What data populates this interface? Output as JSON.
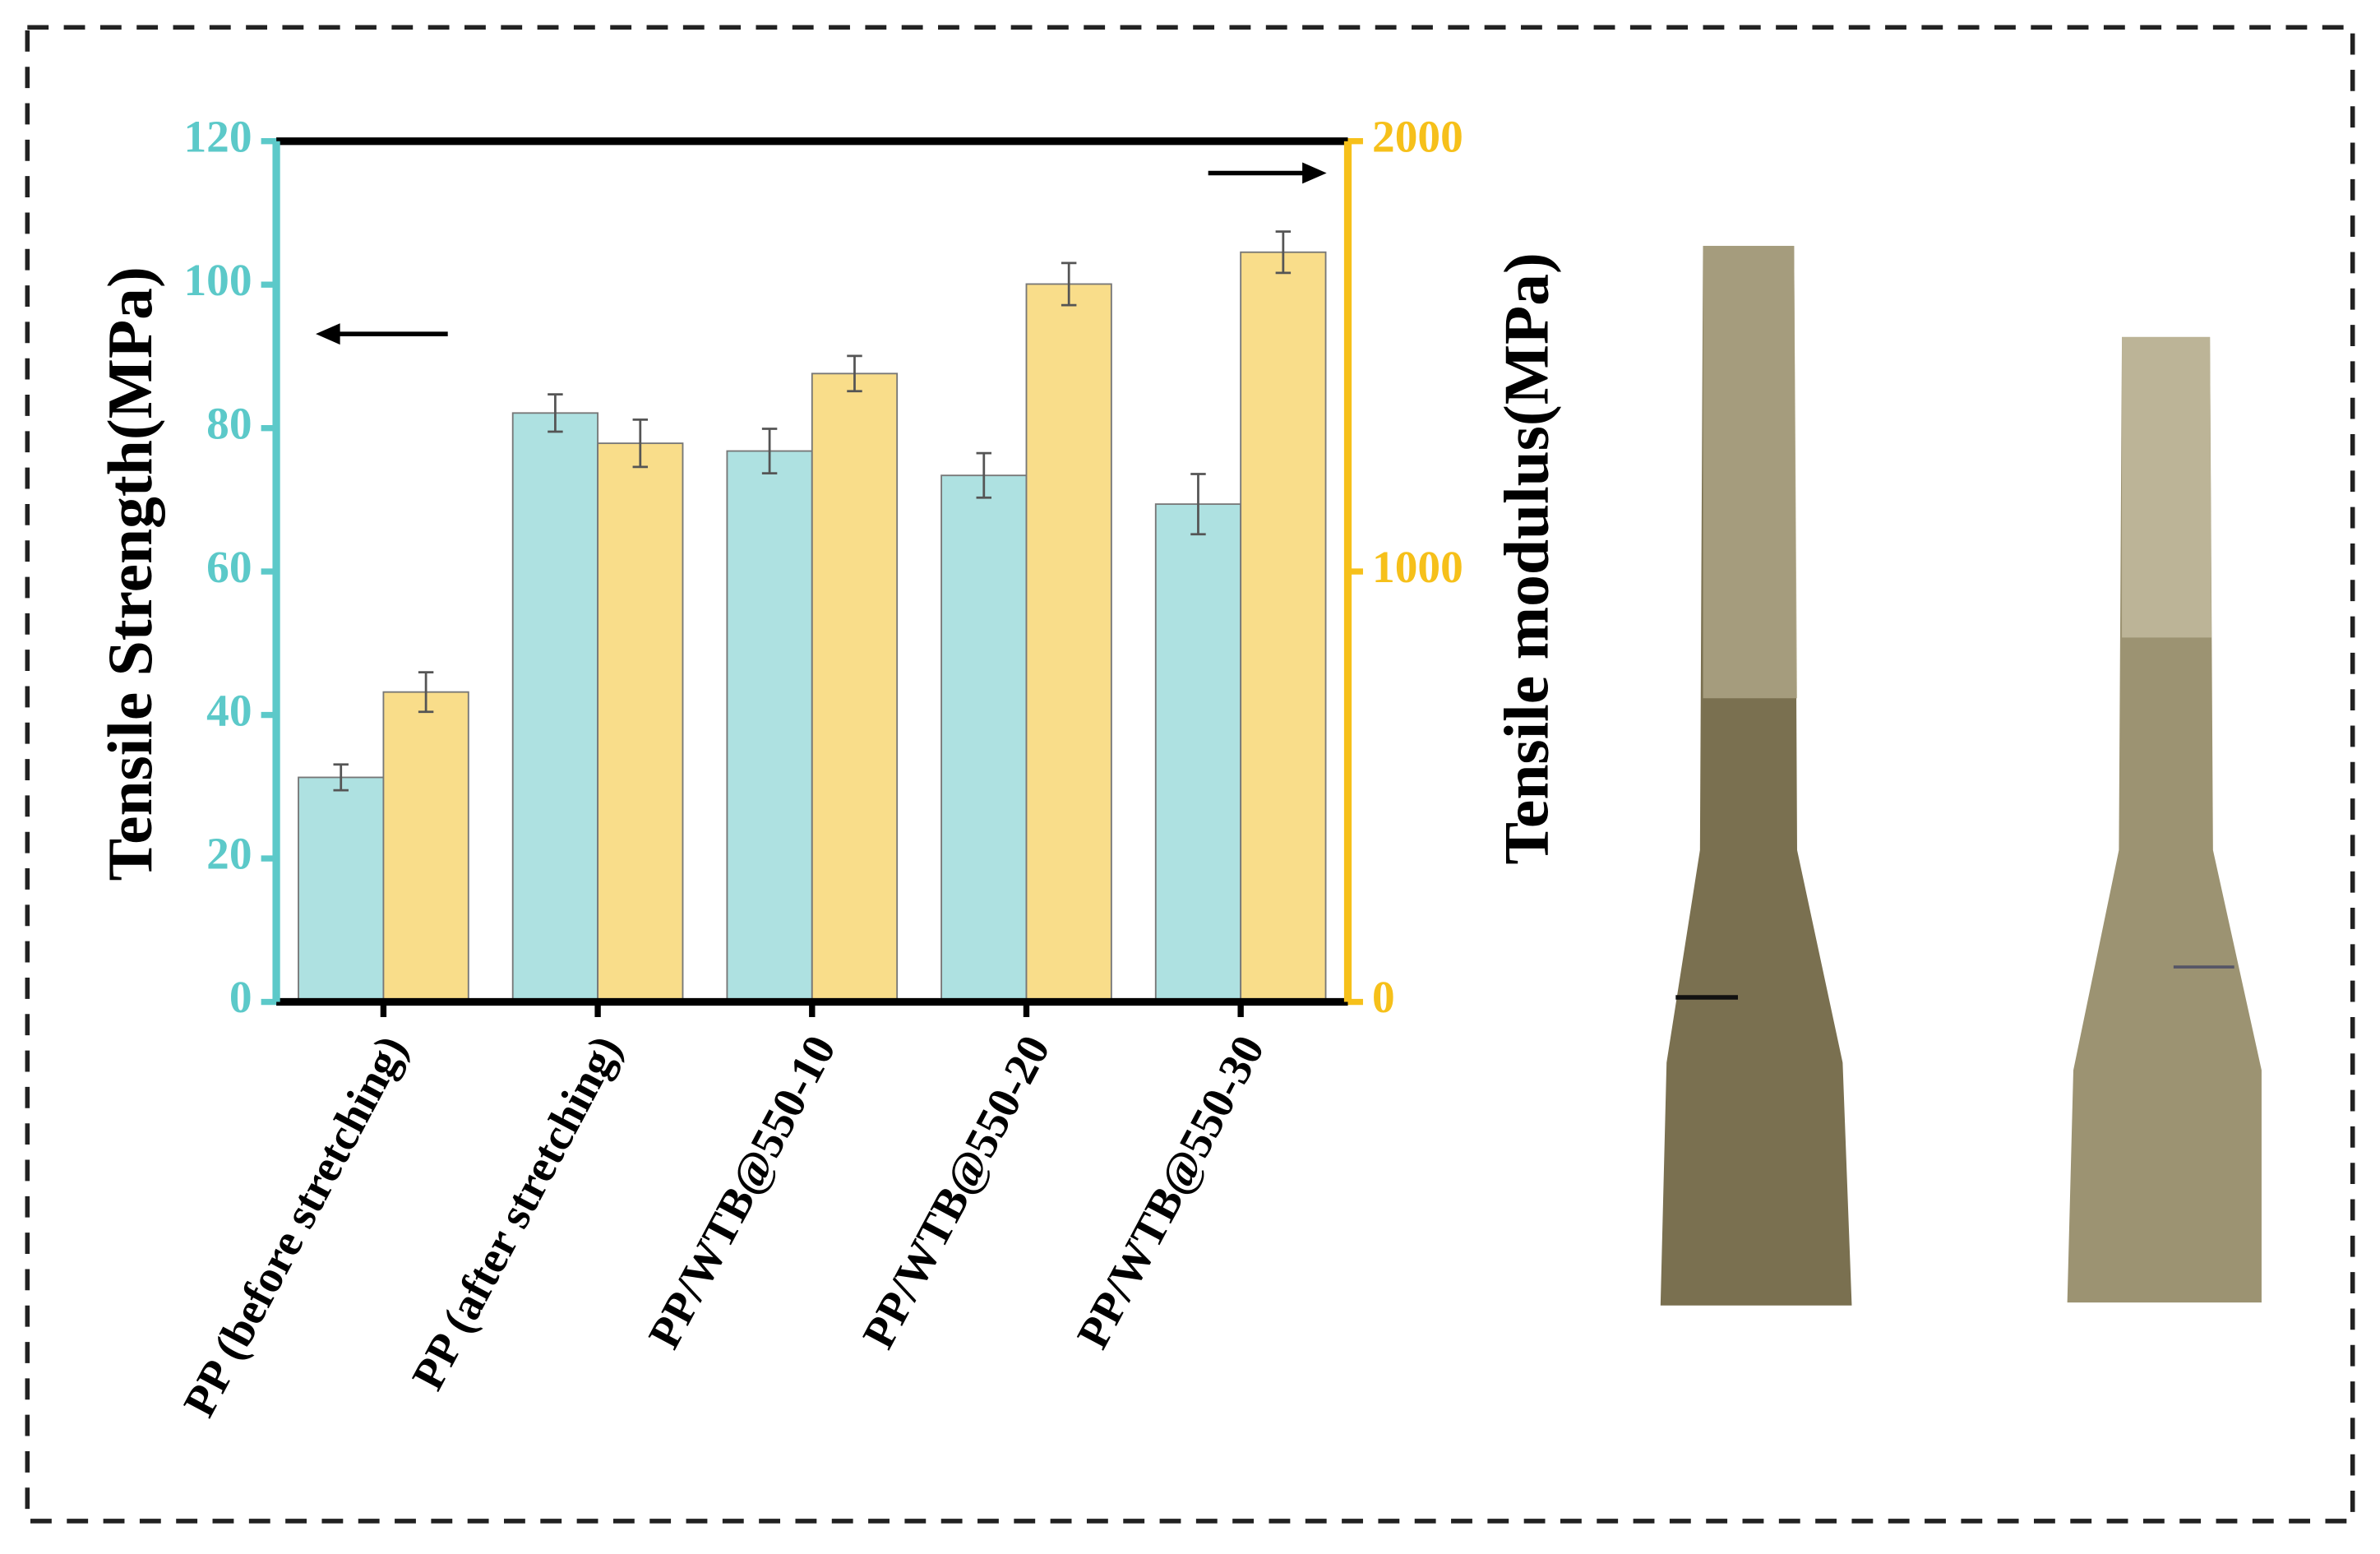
{
  "chart_data": {
    "type": "bar",
    "y_label": "Tensile Strength(MPa)",
    "y2_label": "Tensile modulus(MPa)",
    "categories": [
      "PP (before stretching)",
      "PP (after stretching)",
      "PP/WTB@550-10",
      "PP/WTB@550-20",
      "PP/WTB@550-30"
    ],
    "series": [
      {
        "color": "#aee1e1",
        "values": [
          31.3,
          82.1,
          76.8,
          73.4,
          69.4
        ],
        "errors": [
          1.8,
          2.6,
          3.1,
          3.1,
          4.2
        ]
      },
      {
        "color": "#f9dd8a",
        "values": [
          720,
          1298,
          1460,
          1668,
          1742
        ],
        "errors": [
          46,
          55,
          41,
          49,
          48
        ],
        "axis": "y2"
      }
    ],
    "ylim": [
      0,
      120
    ],
    "yticks": [
      0,
      20,
      40,
      60,
      80,
      100,
      120
    ],
    "y_color": "#5cc9c9",
    "y2lim": [
      0,
      2000
    ],
    "y2ticks": [
      0,
      1000,
      2000
    ],
    "y2_color": "#f6c01a"
  }
}
